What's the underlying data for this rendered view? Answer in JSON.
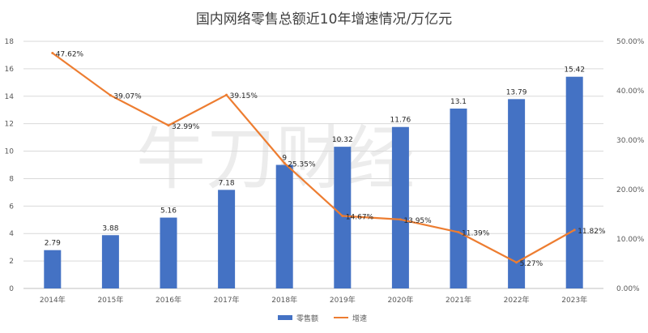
{
  "chart_data": {
    "type": "bar",
    "title": "国内网络零售总额近10年增速情况/万亿元",
    "watermark": "牛刀财经",
    "categories": [
      "2014年",
      "2015年",
      "2016年",
      "2017年",
      "2018年",
      "2019年",
      "2020年",
      "2021年",
      "2022年",
      "2023年"
    ],
    "series": [
      {
        "name": "零售额",
        "type": "bar",
        "axis": "left",
        "color": "#4472C4",
        "values": [
          2.79,
          3.88,
          5.16,
          7.18,
          9,
          10.32,
          11.76,
          13.1,
          13.79,
          15.42
        ],
        "labels": [
          "2.79",
          "3.88",
          "5.16",
          "7.18",
          "9",
          "10.32",
          "11.76",
          "13.1",
          "13.79",
          "15.42"
        ]
      },
      {
        "name": "增速",
        "type": "line",
        "axis": "right",
        "color": "#ED7D31",
        "values": [
          47.62,
          39.07,
          32.99,
          39.15,
          25.35,
          14.67,
          13.95,
          11.39,
          5.27,
          11.82
        ],
        "labels": [
          "47.62%",
          "39.07%",
          "32.99%",
          "39.15%",
          "25.35%",
          "14.67%",
          "13.95%",
          "11.39%",
          "5.27%",
          "11.82%"
        ]
      }
    ],
    "y_left": {
      "min": 0,
      "max": 18,
      "ticks": [
        0,
        2,
        4,
        6,
        8,
        10,
        12,
        14,
        16,
        18
      ],
      "tick_labels": [
        "0",
        "2",
        "4",
        "6",
        "8",
        "10",
        "12",
        "14",
        "16",
        "18"
      ]
    },
    "y_right": {
      "min": 0,
      "max": 50,
      "ticks": [
        0,
        10,
        20,
        30,
        40,
        50
      ],
      "tick_labels": [
        "0.00%",
        "10.00%",
        "20.00%",
        "30.00%",
        "40.00%",
        "50.00%"
      ]
    },
    "grid": true,
    "legend_position": "bottom"
  }
}
